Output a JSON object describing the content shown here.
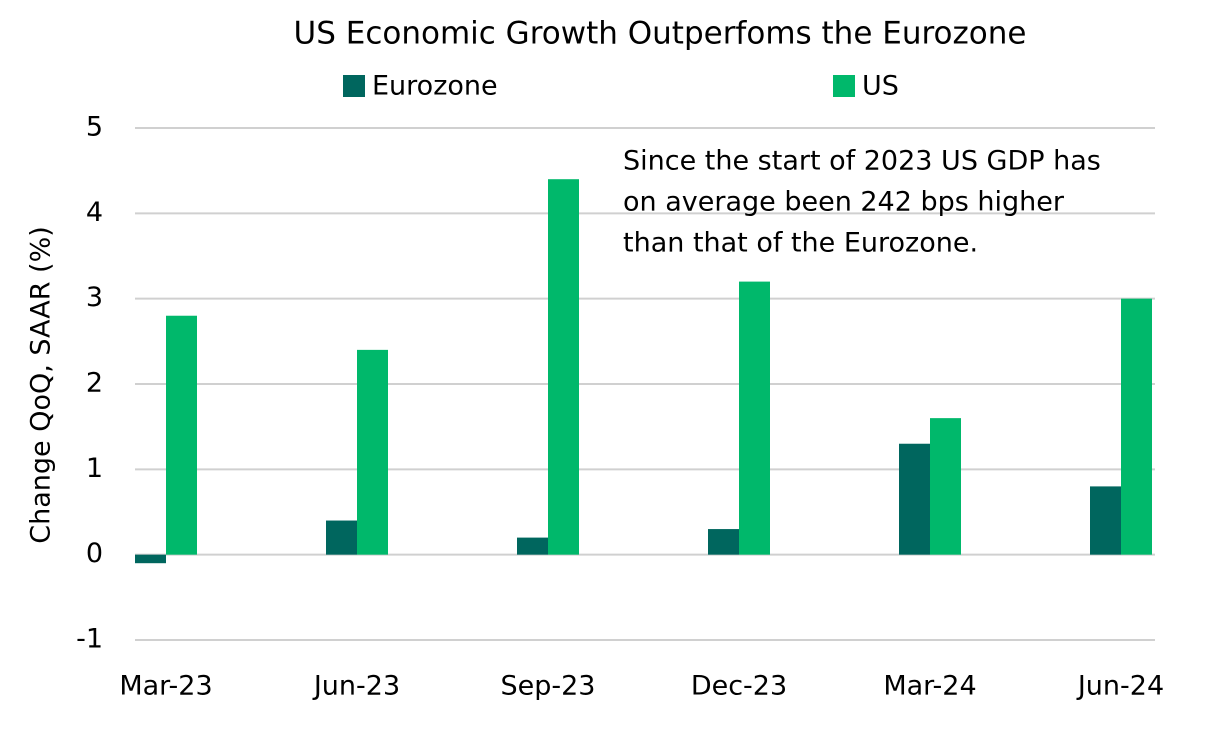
{
  "chart_data": {
    "type": "bar",
    "title": "US Economic Growth Outperfoms the Eurozone",
    "y_label": "Change QoQ, SAAR (%)",
    "categories": [
      "Mar-23",
      "Jun-23",
      "Sep-23",
      "Dec-23",
      "Mar-24",
      "Jun-24"
    ],
    "series": [
      {
        "name": "Eurozone",
        "color": "#00665e",
        "values": [
          -0.1,
          0.4,
          0.2,
          0.3,
          1.3,
          0.8
        ]
      },
      {
        "name": "US",
        "color": "#00b86b",
        "values": [
          2.8,
          2.4,
          4.4,
          3.2,
          1.6,
          3.0
        ]
      }
    ],
    "annotation": [
      "Since the start of 2023 US GDP has",
      "on average been 242 bps higher",
      "than that of the Eurozone."
    ],
    "ylim": [
      -1,
      5
    ],
    "yticks": [
      -1,
      0,
      1,
      2,
      3,
      4,
      5
    ],
    "grid": true,
    "legend": "top"
  }
}
